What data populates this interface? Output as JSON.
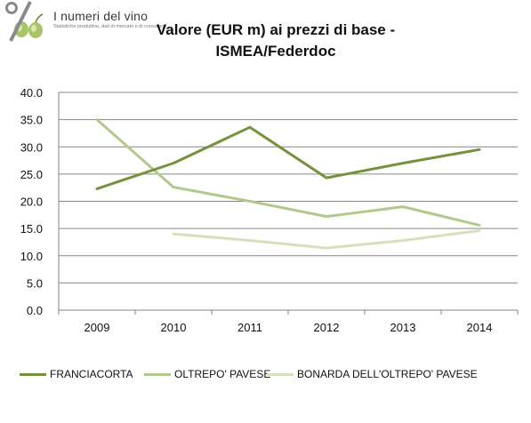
{
  "logo": {
    "title": "I numeri del vino",
    "subtitle": "Statistiche produttive, dati di mercato e di consumo"
  },
  "chart_data": {
    "type": "line",
    "title": "Valore (EUR m) ai prezzi di base - ISMEA/Federdoc",
    "title_lines": [
      "Valore (EUR m) ai prezzi di base -",
      "ISMEA/Federdoc"
    ],
    "categories": [
      "2009",
      "2010",
      "2011",
      "2012",
      "2013",
      "2014"
    ],
    "ylim": [
      0,
      40
    ],
    "yticks": [
      "0.0",
      "5.0",
      "10.0",
      "15.0",
      "20.0",
      "25.0",
      "30.0",
      "35.0",
      "40.0"
    ],
    "grid": true,
    "legend_position": "bottom",
    "series": [
      {
        "name": "FRANCIACORTA",
        "color": "#76923c",
        "values": [
          22.3,
          27.0,
          33.6,
          24.3,
          27.0,
          29.5
        ]
      },
      {
        "name": "OLTREPO' PAVESE",
        "color": "#b3c98c",
        "values": [
          35.0,
          22.6,
          20.0,
          17.2,
          19.0,
          15.6
        ]
      },
      {
        "name": "BONARDA DELL'OLTREPO' PAVESE",
        "color": "#d4e1bd",
        "values": [
          null,
          14.0,
          12.8,
          11.4,
          12.8,
          14.6
        ]
      }
    ]
  }
}
